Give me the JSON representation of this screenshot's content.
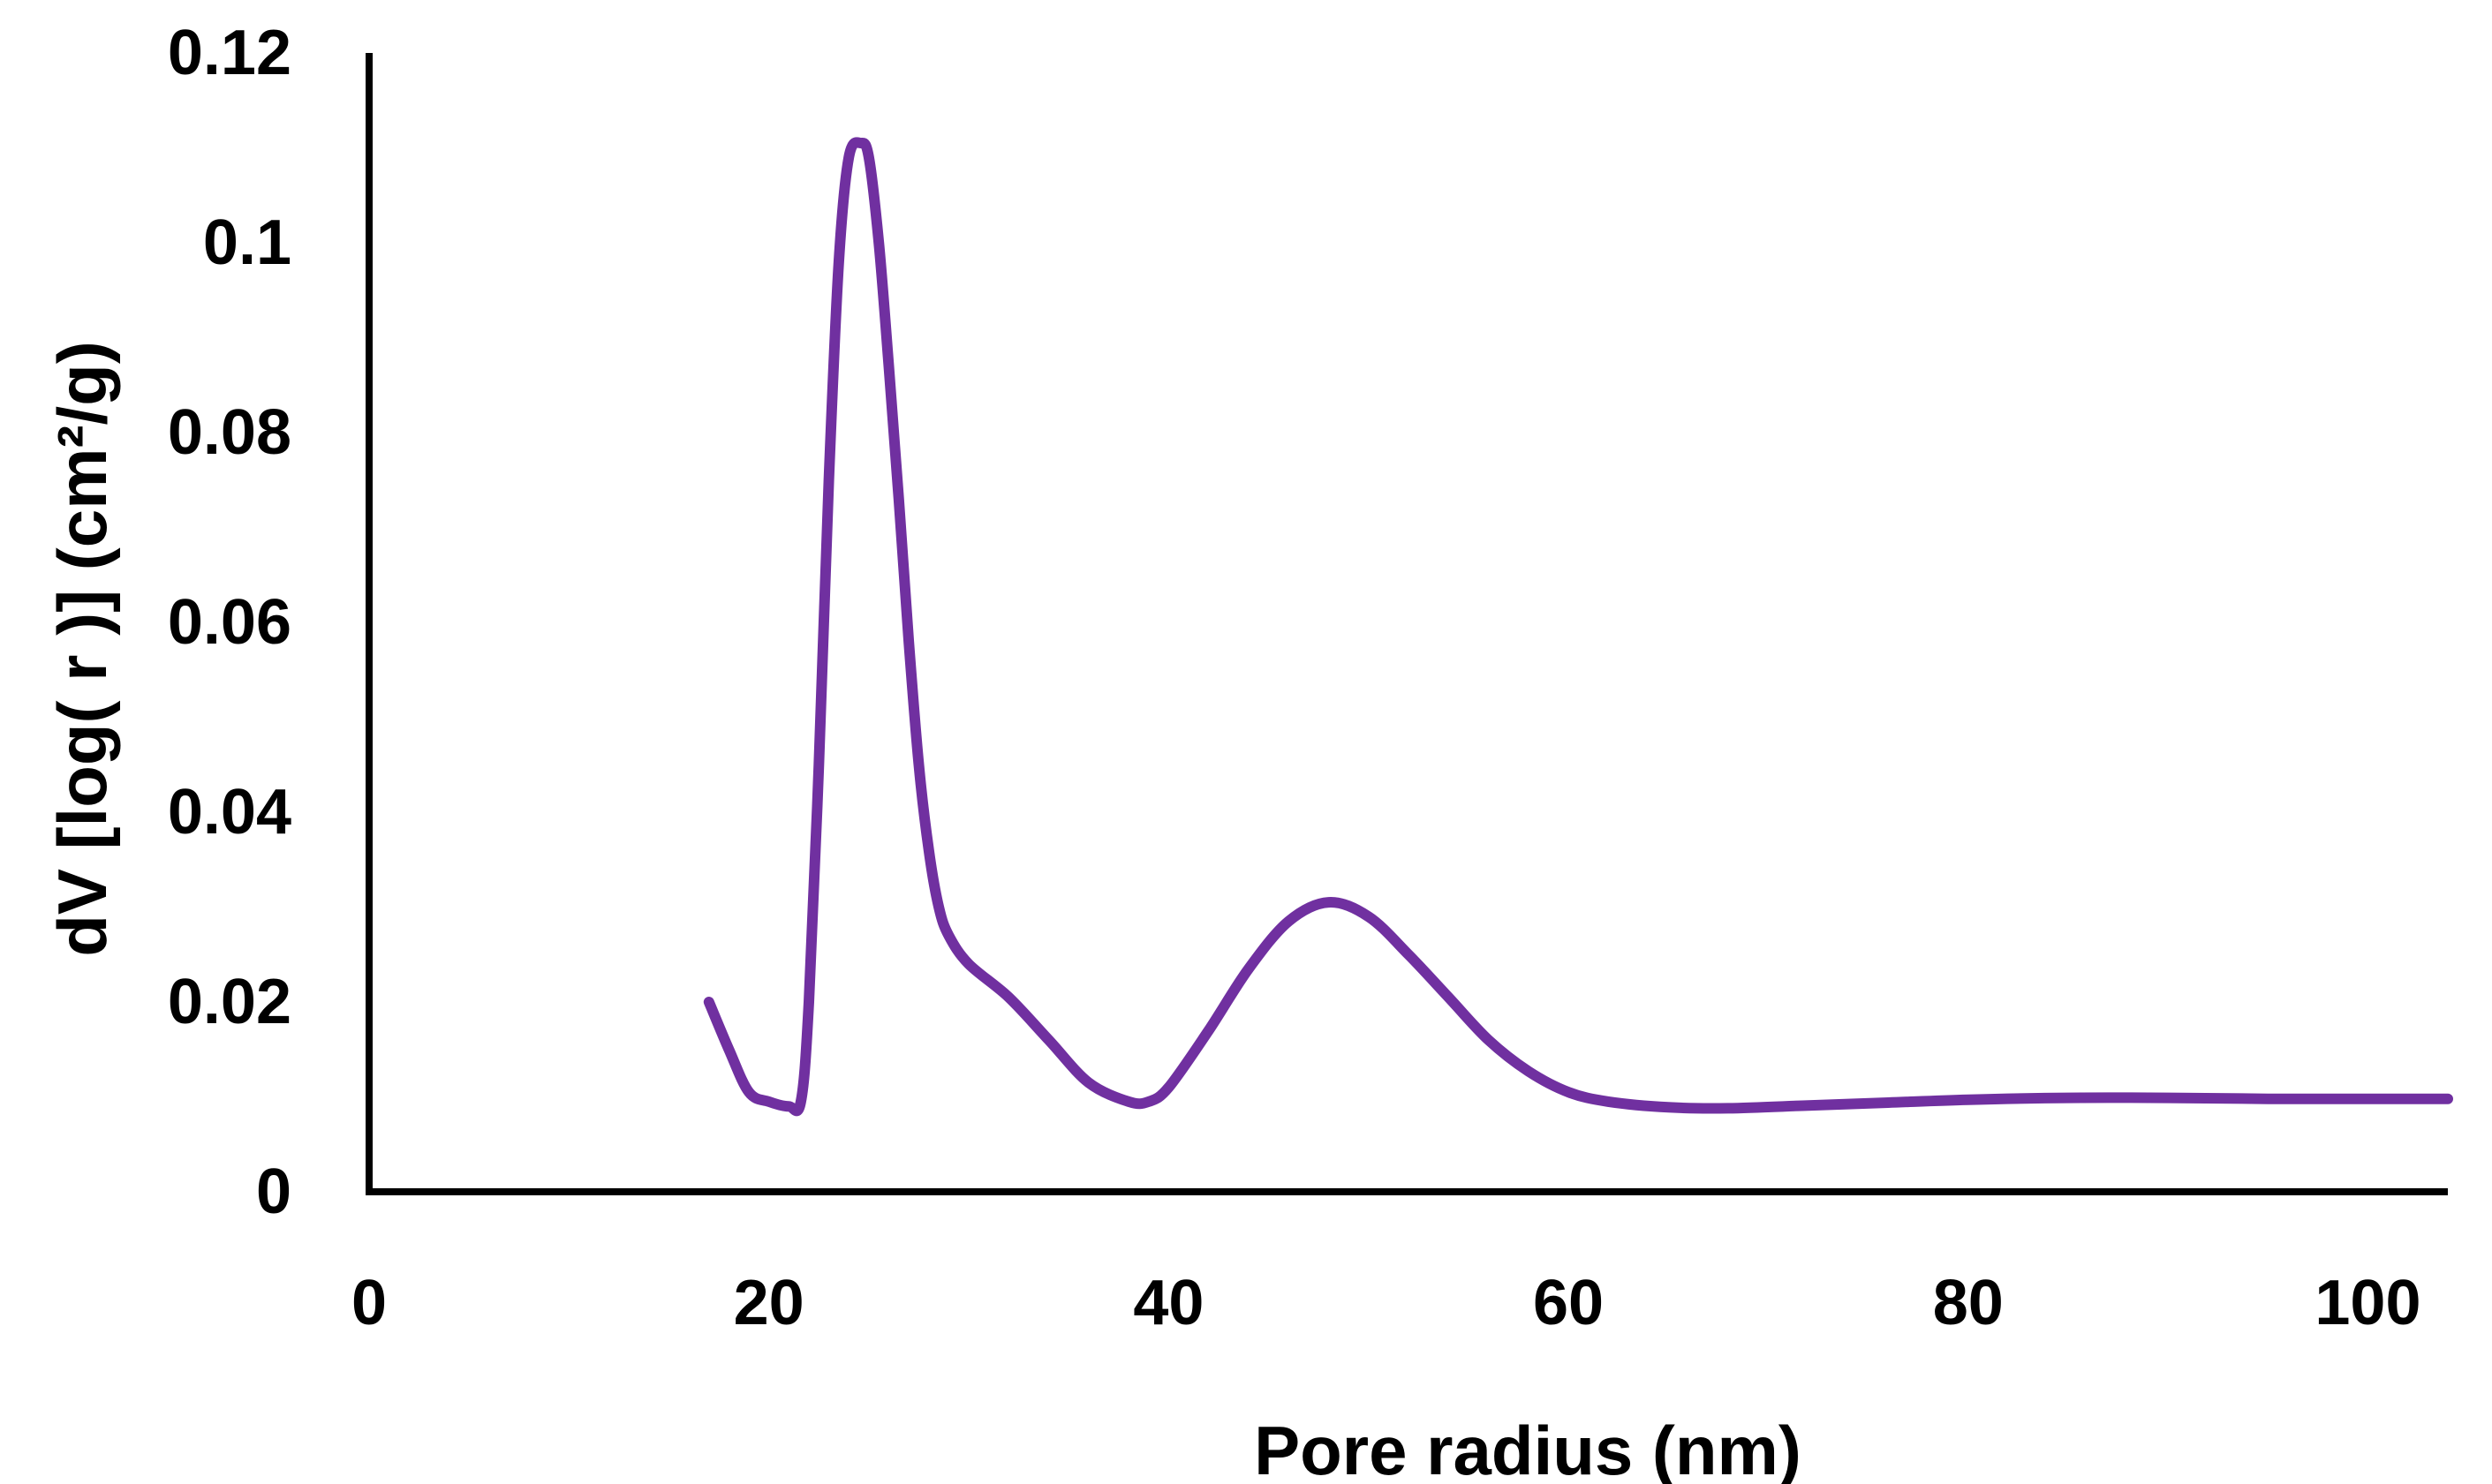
{
  "chart_data": {
    "type": "line",
    "title": "",
    "xlabel": "Pore radius (nm)",
    "ylabel": "dV [log( r )] (cm²/g)",
    "xlim": [
      0,
      104
    ],
    "ylim": [
      0,
      0.12
    ],
    "xticks": [
      "0",
      "20",
      "40",
      "60",
      "80",
      "100"
    ],
    "yticks": [
      "0",
      "0.02",
      "0.04",
      "0.06",
      "0.08",
      "0.1",
      "0.12"
    ],
    "grid": false,
    "legend": "none",
    "line_color": "#7030A0",
    "series": [
      {
        "x": [
          17,
          18,
          19,
          20,
          21,
          21.6,
          22,
          22.5,
          23,
          23.5,
          24,
          24.6,
          25,
          25.5,
          26,
          26.5,
          27,
          27.5,
          28,
          28.5,
          29,
          30,
          32,
          34,
          36,
          38,
          39,
          40,
          42,
          44,
          46,
          48,
          50,
          52,
          54,
          56,
          58,
          60,
          62,
          65,
          68,
          72,
          76,
          80,
          85,
          90,
          95,
          100,
          104
        ],
        "y": [
          0.02,
          0.015,
          0.0105,
          0.0095,
          0.009,
          0.0095,
          0.02,
          0.045,
          0.075,
          0.098,
          0.109,
          0.1105,
          0.109,
          0.1,
          0.087,
          0.073,
          0.058,
          0.045,
          0.036,
          0.03,
          0.027,
          0.024,
          0.0205,
          0.016,
          0.0115,
          0.0095,
          0.0095,
          0.011,
          0.017,
          0.0235,
          0.0285,
          0.0305,
          0.029,
          0.025,
          0.0205,
          0.016,
          0.0127,
          0.0105,
          0.0095,
          0.0089,
          0.0088,
          0.0091,
          0.0094,
          0.0097,
          0.0099,
          0.0099,
          0.0098,
          0.0098,
          0.0098
        ]
      }
    ]
  }
}
